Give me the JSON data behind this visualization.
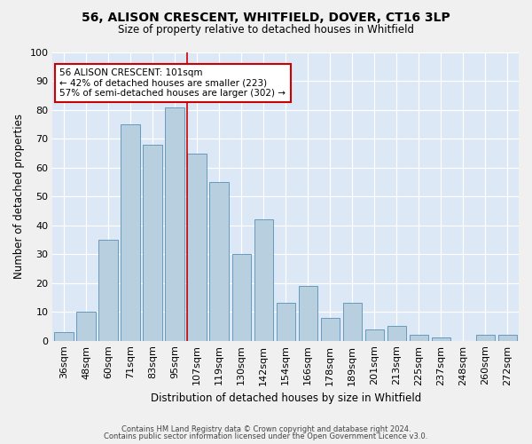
{
  "title1": "56, ALISON CRESCENT, WHITFIELD, DOVER, CT16 3LP",
  "title2": "Size of property relative to detached houses in Whitfield",
  "xlabel": "Distribution of detached houses by size in Whitfield",
  "ylabel": "Number of detached properties",
  "categories": [
    "36sqm",
    "48sqm",
    "60sqm",
    "71sqm",
    "83sqm",
    "95sqm",
    "107sqm",
    "119sqm",
    "130sqm",
    "142sqm",
    "154sqm",
    "166sqm",
    "178sqm",
    "189sqm",
    "201sqm",
    "213sqm",
    "225sqm",
    "237sqm",
    "248sqm",
    "260sqm",
    "272sqm"
  ],
  "values": [
    3,
    10,
    35,
    75,
    68,
    81,
    65,
    55,
    30,
    42,
    13,
    19,
    8,
    13,
    4,
    5,
    2,
    1,
    0,
    2,
    2
  ],
  "bar_color": "#b8cfe0",
  "bar_edge_color": "#6699bb",
  "background_color": "#dce8f5",
  "grid_color": "#ffffff",
  "vline_x": 6,
  "vline_color": "#cc0000",
  "annotation_text": "56 ALISON CRESCENT: 101sqm\n← 42% of detached houses are smaller (223)\n57% of semi-detached houses are larger (302) →",
  "annotation_box_color": "#ffffff",
  "annotation_box_edge": "#cc0000",
  "ylim": [
    0,
    100
  ],
  "yticks": [
    0,
    10,
    20,
    30,
    40,
    50,
    60,
    70,
    80,
    90,
    100
  ],
  "footer1": "Contains HM Land Registry data © Crown copyright and database right 2024.",
  "footer2": "Contains public sector information licensed under the Open Government Licence v3.0."
}
